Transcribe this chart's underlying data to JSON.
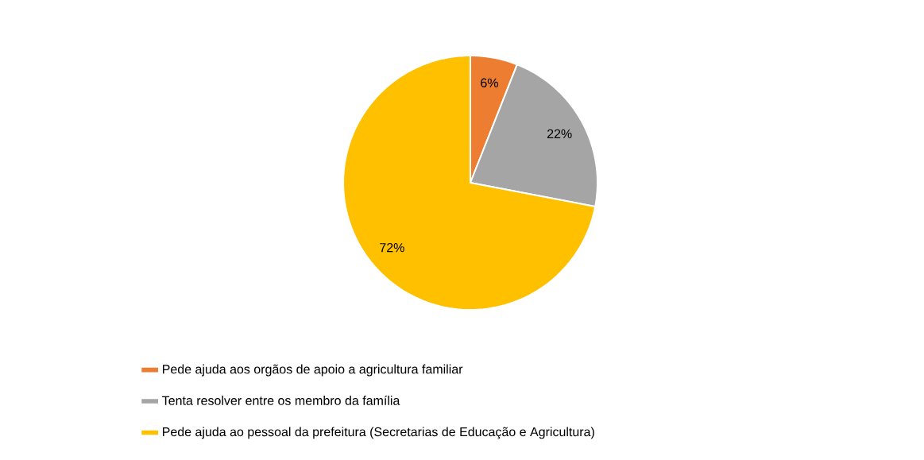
{
  "chart_data": {
    "type": "pie",
    "categories": [
      "Pede ajuda aos orgãos de apoio a agricultura familiar",
      "Tenta resolver entre os membro da família",
      "Pede ajuda ao pessoal da prefeitura (Secretarias de Educação e Agricultura)"
    ],
    "values": [
      6,
      22,
      72
    ],
    "colors": [
      "#ed7d31",
      "#a5a5a5",
      "#ffc000"
    ],
    "value_labels": [
      "6%",
      "22%",
      "72%"
    ],
    "legend": "bottom"
  }
}
